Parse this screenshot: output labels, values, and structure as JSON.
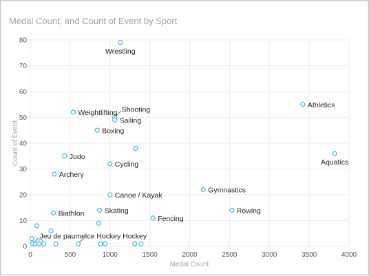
{
  "chart_data": {
    "type": "scatter",
    "title": "Medal Count, and Count of Event by Sport",
    "xlabel": "Medal Count",
    "ylabel": "Count of Event",
    "xlim": [
      0,
      4000
    ],
    "ylim": [
      0,
      80
    ],
    "xticks": [
      0,
      500,
      1000,
      1500,
      2000,
      2500,
      3000,
      3500,
      4000
    ],
    "yticks": [
      0,
      10,
      20,
      30,
      40,
      50,
      60,
      70,
      80
    ],
    "grid": true,
    "legend": "none",
    "marker_color": "#35b8e6",
    "points": [
      {
        "x": 1130,
        "y": 79,
        "label": "Wrestling",
        "label_pos": "below"
      },
      {
        "x": 3420,
        "y": 55,
        "label": "Athletics",
        "label_pos": "right"
      },
      {
        "x": 3820,
        "y": 36,
        "label": "Aquatics",
        "label_pos": "below"
      },
      {
        "x": 540,
        "y": 52,
        "label": "Weightlifting",
        "label_pos": "right"
      },
      {
        "x": 1060,
        "y": 50,
        "label": "Shooting",
        "label_pos": "right-up"
      },
      {
        "x": 1060,
        "y": 49,
        "label": "Sailing",
        "label_pos": "right"
      },
      {
        "x": 840,
        "y": 45,
        "label": "Boxing",
        "label_pos": "right"
      },
      {
        "x": 1320,
        "y": 38,
        "label": "",
        "label_pos": "none"
      },
      {
        "x": 430,
        "y": 35,
        "label": "Judo",
        "label_pos": "right"
      },
      {
        "x": 1000,
        "y": 32,
        "label": "Cycling",
        "label_pos": "right"
      },
      {
        "x": 300,
        "y": 28,
        "label": "Archery",
        "label_pos": "right"
      },
      {
        "x": 2170,
        "y": 22,
        "label": "Gymnastics",
        "label_pos": "right"
      },
      {
        "x": 1000,
        "y": 20,
        "label": "Canoe / Kayak",
        "label_pos": "right"
      },
      {
        "x": 2530,
        "y": 14,
        "label": "Rowing",
        "label_pos": "right"
      },
      {
        "x": 870,
        "y": 14,
        "label": "Skating",
        "label_pos": "right"
      },
      {
        "x": 290,
        "y": 13,
        "label": "Biathlon",
        "label_pos": "right"
      },
      {
        "x": 1540,
        "y": 11,
        "label": "Fencing",
        "label_pos": "right"
      },
      {
        "x": 860,
        "y": 9,
        "label": "",
        "label_pos": "none"
      },
      {
        "x": 80,
        "y": 8,
        "label": "",
        "label_pos": "none"
      },
      {
        "x": 260,
        "y": 6,
        "label": "",
        "label_pos": "none"
      },
      {
        "x": 20,
        "y": 3,
        "label": "",
        "label_pos": "none"
      },
      {
        "x": 130,
        "y": 2,
        "label": "",
        "label_pos": "none"
      },
      {
        "x": 30,
        "y": 1,
        "label": "Jeu de paume",
        "label_pos": "right-up"
      },
      {
        "x": 60,
        "y": 1,
        "label": "",
        "label_pos": "none"
      },
      {
        "x": 110,
        "y": 1,
        "label": "",
        "label_pos": "none"
      },
      {
        "x": 170,
        "y": 1,
        "label": "",
        "label_pos": "none"
      },
      {
        "x": 320,
        "y": 1,
        "label": "",
        "label_pos": "none"
      },
      {
        "x": 600,
        "y": 1,
        "label": "Ice Hockey",
        "label_pos": "right-up"
      },
      {
        "x": 880,
        "y": 1,
        "label": "",
        "label_pos": "none"
      },
      {
        "x": 940,
        "y": 1,
        "label": "",
        "label_pos": "none"
      },
      {
        "x": 1310,
        "y": 1,
        "label": "Hockey",
        "label_pos": "up"
      },
      {
        "x": 1390,
        "y": 1,
        "label": "",
        "label_pos": "none"
      }
    ]
  }
}
